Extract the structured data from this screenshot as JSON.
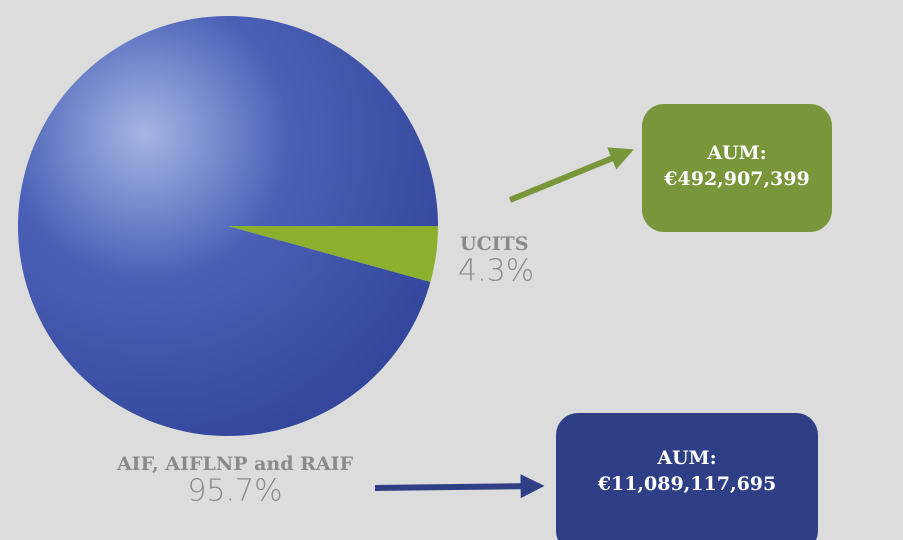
{
  "chart_data": {
    "type": "pie",
    "categories": [
      "AIF, AIFLNP and RAIF",
      "UCITS"
    ],
    "values": [
      95.7,
      4.3
    ],
    "value_labels": [
      "95.7%",
      "4.3%"
    ],
    "colors": [
      "#3b4fa6",
      "#8cb02e"
    ],
    "annotations": [
      {
        "title": "AUM:",
        "text": "€11,089,117,695",
        "color": "#2f3f86"
      },
      {
        "title": "AUM:",
        "text": "€492,907,399",
        "color": "#7a963a"
      }
    ]
  }
}
